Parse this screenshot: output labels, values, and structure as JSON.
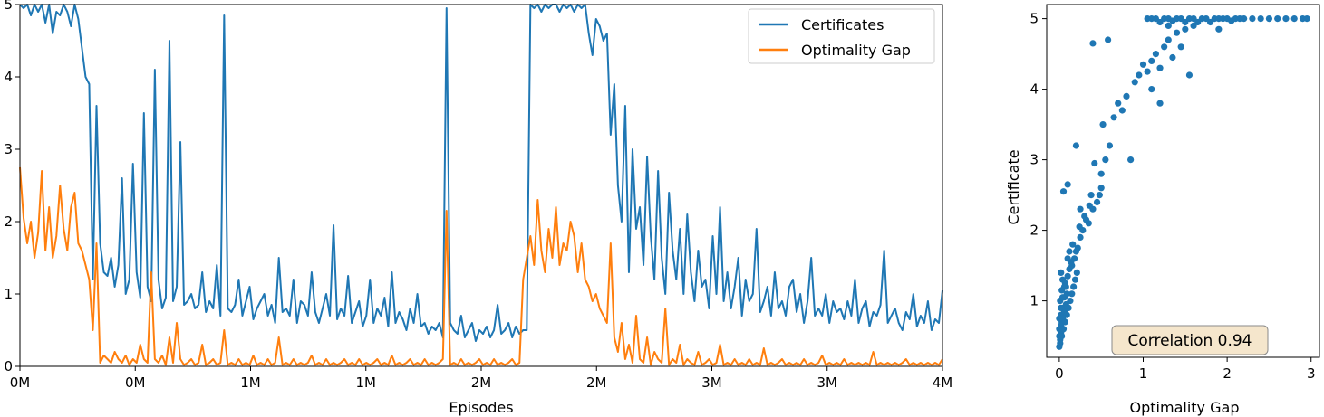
{
  "chart_data": [
    {
      "type": "line",
      "xlabel": "Episodes",
      "ylabel": "",
      "x_tick_labels": [
        "0M",
        "0M",
        "1M",
        "1M",
        "2M",
        "2M",
        "3M",
        "3M",
        "4M"
      ],
      "y_ticks": [
        0,
        1,
        2,
        3,
        4,
        5
      ],
      "ylim": [
        0,
        5
      ],
      "legend": {
        "placement": "top-right",
        "entries": [
          "Certificates",
          "Optimality Gap"
        ]
      },
      "grid": false,
      "series": [
        {
          "name": "Certificates",
          "color": "#1f77b4",
          "values": [
            5.0,
            4.95,
            5.0,
            4.85,
            5.0,
            4.9,
            5.0,
            4.75,
            5.0,
            4.6,
            4.9,
            4.85,
            5.0,
            4.9,
            4.7,
            5.0,
            4.8,
            4.4,
            4.0,
            3.9,
            1.2,
            3.6,
            1.7,
            1.3,
            1.25,
            1.5,
            1.1,
            1.4,
            2.6,
            1.0,
            1.2,
            2.8,
            1.3,
            0.95,
            3.5,
            1.1,
            0.9,
            4.1,
            1.2,
            0.8,
            0.95,
            4.5,
            0.9,
            1.1,
            3.1,
            0.85,
            0.9,
            1.0,
            0.8,
            0.85,
            1.3,
            0.75,
            0.9,
            0.8,
            1.4,
            0.7,
            4.85,
            0.8,
            0.75,
            0.85,
            1.2,
            0.7,
            0.9,
            1.1,
            0.65,
            0.8,
            0.9,
            1.0,
            0.7,
            0.85,
            0.6,
            1.5,
            0.75,
            0.8,
            0.7,
            1.2,
            0.6,
            0.9,
            0.85,
            0.7,
            1.3,
            0.75,
            0.6,
            0.8,
            1.0,
            0.7,
            1.95,
            0.65,
            0.8,
            0.7,
            1.25,
            0.6,
            0.75,
            0.9,
            0.55,
            0.7,
            1.2,
            0.6,
            0.8,
            0.7,
            0.95,
            0.55,
            1.3,
            0.6,
            0.75,
            0.65,
            0.5,
            0.8,
            0.6,
            1.0,
            0.55,
            0.6,
            0.45,
            0.55,
            0.5,
            0.6,
            0.4,
            4.95,
            0.6,
            0.5,
            0.45,
            0.7,
            0.4,
            0.5,
            0.6,
            0.35,
            0.5,
            0.45,
            0.55,
            0.4,
            0.5,
            0.85,
            0.45,
            0.5,
            0.6,
            0.4,
            0.55,
            0.45,
            0.5,
            0.5,
            5.0,
            4.95,
            5.0,
            4.9,
            5.0,
            4.95,
            5.0,
            5.0,
            4.9,
            5.0,
            4.95,
            5.0,
            4.9,
            5.0,
            4.95,
            5.0,
            4.6,
            4.3,
            4.8,
            4.7,
            4.5,
            4.6,
            3.2,
            3.9,
            2.5,
            2.0,
            3.6,
            1.3,
            3.0,
            1.9,
            2.2,
            1.4,
            2.9,
            1.8,
            1.2,
            2.7,
            1.5,
            1.0,
            2.4,
            1.6,
            1.2,
            1.9,
            1.0,
            2.1,
            1.3,
            0.9,
            1.6,
            1.1,
            1.2,
            0.8,
            1.8,
            1.0,
            2.2,
            0.9,
            1.3,
            0.8,
            1.1,
            1.5,
            0.7,
            1.2,
            0.9,
            1.0,
            1.9,
            0.75,
            0.9,
            1.1,
            0.7,
            1.3,
            0.8,
            0.9,
            0.7,
            1.1,
            1.2,
            0.75,
            1.0,
            0.6,
            0.9,
            1.5,
            0.7,
            0.8,
            0.7,
            1.0,
            0.6,
            0.9,
            0.75,
            0.8,
            0.65,
            0.9,
            0.7,
            1.2,
            0.6,
            0.8,
            0.9,
            0.55,
            0.75,
            0.7,
            0.85,
            1.6,
            0.6,
            0.7,
            0.8,
            0.6,
            0.5,
            0.75,
            0.65,
            1.0,
            0.55,
            0.7,
            0.6,
            0.9,
            0.5,
            0.65,
            0.6,
            1.05
          ]
        },
        {
          "name": "Optimality Gap",
          "color": "#ff7f0e",
          "values": [
            2.75,
            2.05,
            1.7,
            2.0,
            1.5,
            1.85,
            2.7,
            1.6,
            2.2,
            1.5,
            1.8,
            2.5,
            1.9,
            1.6,
            2.2,
            2.4,
            1.7,
            1.6,
            1.4,
            1.2,
            0.5,
            1.7,
            0.05,
            0.15,
            0.1,
            0.05,
            0.2,
            0.1,
            0.05,
            0.15,
            0.02,
            0.1,
            0.05,
            0.3,
            0.1,
            0.05,
            1.3,
            0.1,
            0.05,
            0.15,
            0.02,
            0.4,
            0.05,
            0.6,
            0.1,
            0.02,
            0.05,
            0.1,
            0.02,
            0.05,
            0.3,
            0.02,
            0.05,
            0.1,
            0.02,
            0.05,
            0.5,
            0.02,
            0.05,
            0.02,
            0.1,
            0.02,
            0.05,
            0.02,
            0.15,
            0.02,
            0.05,
            0.02,
            0.1,
            0.02,
            0.05,
            0.4,
            0.02,
            0.05,
            0.02,
            0.1,
            0.02,
            0.05,
            0.02,
            0.05,
            0.15,
            0.02,
            0.05,
            0.02,
            0.1,
            0.02,
            0.05,
            0.02,
            0.05,
            0.1,
            0.02,
            0.05,
            0.02,
            0.1,
            0.02,
            0.05,
            0.02,
            0.05,
            0.1,
            0.02,
            0.05,
            0.02,
            0.15,
            0.02,
            0.05,
            0.02,
            0.05,
            0.1,
            0.02,
            0.05,
            0.02,
            0.1,
            0.02,
            0.05,
            0.02,
            0.05,
            0.1,
            2.15,
            0.02,
            0.05,
            0.02,
            0.1,
            0.02,
            0.05,
            0.02,
            0.05,
            0.1,
            0.02,
            0.05,
            0.02,
            0.1,
            0.02,
            0.05,
            0.02,
            0.05,
            0.1,
            0.02,
            0.05,
            1.2,
            1.5,
            1.8,
            1.4,
            2.3,
            1.6,
            1.3,
            1.9,
            1.5,
            2.2,
            1.4,
            1.7,
            1.6,
            2.0,
            1.8,
            1.3,
            1.7,
            1.2,
            1.1,
            0.9,
            1.0,
            0.8,
            0.7,
            0.6,
            1.7,
            0.4,
            0.2,
            0.6,
            0.1,
            0.3,
            0.05,
            0.7,
            0.1,
            0.05,
            0.4,
            0.02,
            0.2,
            0.1,
            0.05,
            0.8,
            0.02,
            0.1,
            0.05,
            0.3,
            0.02,
            0.1,
            0.05,
            0.02,
            0.2,
            0.02,
            0.05,
            0.1,
            0.02,
            0.05,
            0.3,
            0.02,
            0.05,
            0.02,
            0.1,
            0.02,
            0.05,
            0.02,
            0.1,
            0.02,
            0.05,
            0.02,
            0.25,
            0.02,
            0.05,
            0.02,
            0.05,
            0.1,
            0.02,
            0.05,
            0.02,
            0.05,
            0.02,
            0.1,
            0.02,
            0.05,
            0.02,
            0.05,
            0.15,
            0.02,
            0.05,
            0.02,
            0.05,
            0.02,
            0.1,
            0.02,
            0.05,
            0.02,
            0.05,
            0.02,
            0.05,
            0.02,
            0.2,
            0.02,
            0.05,
            0.02,
            0.05,
            0.02,
            0.05,
            0.02,
            0.05,
            0.1,
            0.02,
            0.05,
            0.02,
            0.05,
            0.02,
            0.05,
            0.02,
            0.05,
            0.02,
            0.1
          ]
        }
      ]
    },
    {
      "type": "scatter",
      "xlabel": "Optimality Gap",
      "ylabel": "Certificate",
      "x_ticks": [
        0,
        1,
        2,
        3
      ],
      "y_ticks": [
        1,
        2,
        3,
        4,
        5
      ],
      "xlim": [
        -0.15,
        3.1
      ],
      "ylim": [
        0.2,
        5.2
      ],
      "grid": false,
      "color": "#1f77b4",
      "annotation": "Correlation 0.94",
      "points": [
        [
          0.0,
          0.35
        ],
        [
          0.01,
          0.45
        ],
        [
          0.02,
          0.55
        ],
        [
          0.0,
          0.6
        ],
        [
          0.03,
          0.7
        ],
        [
          0.02,
          0.8
        ],
        [
          0.05,
          0.9
        ],
        [
          0.01,
          1.0
        ],
        [
          0.06,
          1.05
        ],
        [
          0.03,
          1.15
        ],
        [
          0.08,
          1.2
        ],
        [
          0.04,
          1.3
        ],
        [
          0.1,
          1.35
        ],
        [
          0.02,
          1.4
        ],
        [
          0.12,
          1.45
        ],
        [
          0.07,
          1.25
        ],
        [
          0.09,
          1.1
        ],
        [
          0.15,
          1.5
        ],
        [
          0.18,
          1.6
        ],
        [
          0.2,
          1.7
        ],
        [
          0.14,
          1.55
        ],
        [
          0.22,
          1.75
        ],
        [
          0.25,
          1.9
        ],
        [
          0.28,
          2.0
        ],
        [
          0.3,
          2.2
        ],
        [
          0.25,
          2.3
        ],
        [
          0.35,
          2.1
        ],
        [
          0.4,
          2.3
        ],
        [
          0.38,
          2.5
        ],
        [
          0.45,
          2.4
        ],
        [
          0.5,
          2.6
        ],
        [
          0.5,
          2.8
        ],
        [
          0.42,
          2.95
        ],
        [
          0.55,
          3.0
        ],
        [
          0.6,
          3.2
        ],
        [
          0.52,
          3.5
        ],
        [
          0.65,
          3.6
        ],
        [
          0.7,
          3.8
        ],
        [
          0.75,
          3.7
        ],
        [
          0.8,
          3.9
        ],
        [
          0.85,
          3.0
        ],
        [
          0.9,
          4.1
        ],
        [
          0.95,
          4.2
        ],
        [
          1.0,
          4.35
        ],
        [
          1.05,
          4.25
        ],
        [
          1.1,
          4.4
        ],
        [
          1.15,
          4.5
        ],
        [
          1.2,
          4.3
        ],
        [
          1.25,
          4.6
        ],
        [
          1.3,
          4.7
        ],
        [
          1.35,
          4.45
        ],
        [
          1.4,
          4.8
        ],
        [
          1.45,
          4.6
        ],
        [
          1.5,
          4.85
        ],
        [
          1.55,
          4.2
        ],
        [
          1.2,
          3.8
        ],
        [
          1.1,
          4.0
        ],
        [
          0.4,
          4.65
        ],
        [
          0.58,
          4.7
        ],
        [
          0.05,
          2.55
        ],
        [
          0.1,
          2.65
        ],
        [
          0.2,
          3.2
        ],
        [
          1.05,
          5.0
        ],
        [
          1.1,
          5.0
        ],
        [
          1.15,
          5.0
        ],
        [
          1.2,
          4.95
        ],
        [
          1.25,
          5.0
        ],
        [
          1.3,
          5.0
        ],
        [
          1.35,
          4.97
        ],
        [
          1.4,
          5.0
        ],
        [
          1.45,
          5.0
        ],
        [
          1.5,
          4.95
        ],
        [
          1.55,
          5.0
        ],
        [
          1.6,
          5.0
        ],
        [
          1.65,
          4.95
        ],
        [
          1.7,
          5.0
        ],
        [
          1.75,
          5.0
        ],
        [
          1.8,
          4.95
        ],
        [
          1.85,
          5.0
        ],
        [
          1.9,
          5.0
        ],
        [
          1.95,
          5.0
        ],
        [
          2.0,
          5.0
        ],
        [
          2.05,
          4.97
        ],
        [
          2.1,
          5.0
        ],
        [
          2.15,
          5.0
        ],
        [
          2.2,
          5.0
        ],
        [
          2.3,
          5.0
        ],
        [
          2.4,
          5.0
        ],
        [
          2.5,
          5.0
        ],
        [
          2.6,
          5.0
        ],
        [
          2.7,
          5.0
        ],
        [
          2.8,
          5.0
        ],
        [
          2.9,
          5.0
        ],
        [
          2.95,
          5.0
        ],
        [
          1.3,
          4.9
        ],
        [
          1.6,
          4.9
        ],
        [
          1.9,
          4.85
        ],
        [
          0.0,
          0.5
        ],
        [
          0.02,
          0.65
        ],
        [
          0.04,
          0.75
        ],
        [
          0.06,
          0.85
        ],
        [
          0.08,
          0.95
        ],
        [
          0.01,
          0.4
        ],
        [
          0.03,
          0.5
        ],
        [
          0.05,
          0.6
        ],
        [
          0.07,
          0.7
        ],
        [
          0.09,
          0.8
        ],
        [
          0.11,
          0.9
        ],
        [
          0.13,
          1.0
        ],
        [
          0.15,
          1.1
        ],
        [
          0.17,
          1.2
        ],
        [
          0.19,
          1.3
        ],
        [
          0.21,
          1.4
        ],
        [
          0.0,
          0.75
        ],
        [
          0.02,
          0.9
        ],
        [
          0.04,
          1.05
        ],
        [
          0.06,
          1.2
        ],
        [
          0.1,
          1.6
        ],
        [
          0.12,
          1.7
        ],
        [
          0.16,
          1.8
        ],
        [
          0.24,
          2.05
        ],
        [
          0.32,
          2.15
        ],
        [
          0.36,
          2.35
        ],
        [
          0.48,
          2.5
        ]
      ]
    }
  ]
}
